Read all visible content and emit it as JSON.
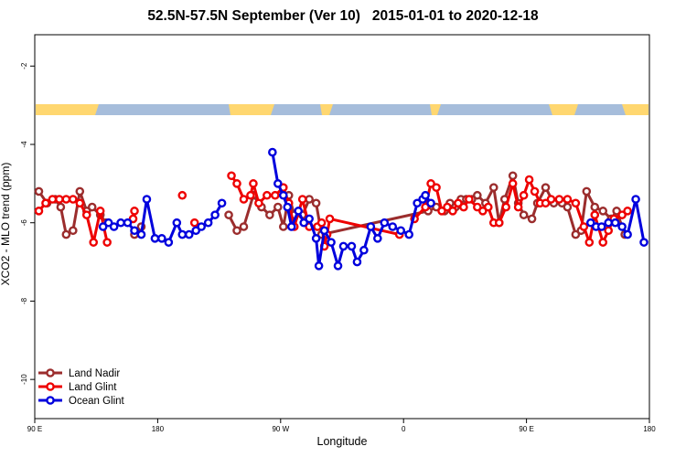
{
  "chart_data": {
    "type": "line",
    "title": "52.5N-57.5N September (Ver 10)   2015-01-01 to 2020-12-18",
    "xlabel": "Longitude",
    "ylabel": "XCO2 - MLO trend (ppm)",
    "x_ticks": [
      {
        "value": 0,
        "label": "90 E"
      },
      {
        "value": 90,
        "label": "180"
      },
      {
        "value": 180,
        "label": "90 W"
      },
      {
        "value": 270,
        "label": "0"
      },
      {
        "value": 360,
        "label": "90 E"
      },
      {
        "value": 450,
        "label": "180"
      }
    ],
    "y_ticks": [
      -2,
      -4,
      -6,
      -8,
      -10
    ],
    "ylim": [
      -11,
      -1.2
    ],
    "xlim": [
      0,
      450
    ],
    "grid": false,
    "legend_position": "bottom-left",
    "series": [
      {
        "name": "Land Nadir",
        "color": "#9b2d2d",
        "points": [
          [
            3,
            -5.2
          ],
          [
            9,
            -5.5
          ],
          [
            15,
            -5.4
          ],
          [
            19,
            -5.6
          ],
          [
            23,
            -6.3
          ],
          [
            28,
            -6.2
          ],
          [
            33,
            -5.2
          ],
          [
            38,
            -5.7
          ],
          [
            42,
            -5.6
          ],
          [
            48,
            -5.8
          ],
          [
            52,
            -6.0
          ],
          [
            73,
            -6.3
          ],
          [
            78,
            -6.1
          ],
          [
            142,
            -5.8
          ],
          [
            148,
            -6.2
          ],
          [
            153,
            -6.1
          ],
          [
            160,
            -5.3
          ],
          [
            166,
            -5.6
          ],
          [
            172,
            -5.8
          ],
          [
            178,
            -5.6
          ],
          [
            182,
            -6.1
          ],
          [
            186,
            -5.3
          ],
          [
            190,
            -5.8
          ],
          [
            196,
            -5.8
          ],
          [
            201,
            -5.4
          ],
          [
            206,
            -5.5
          ],
          [
            210,
            -6.3
          ],
          [
            288,
            -5.7
          ],
          [
            294,
            -5.6
          ],
          [
            300,
            -5.7
          ],
          [
            304,
            -5.5
          ],
          [
            308,
            -5.6
          ],
          [
            312,
            -5.4
          ],
          [
            316,
            -5.4
          ],
          [
            320,
            -5.4
          ],
          [
            324,
            -5.3
          ],
          [
            330,
            -5.5
          ],
          [
            336,
            -5.1
          ],
          [
            340,
            -6.0
          ],
          [
            344,
            -5.4
          ],
          [
            350,
            -4.8
          ],
          [
            354,
            -5.5
          ],
          [
            358,
            -5.8
          ],
          [
            364,
            -5.9
          ],
          [
            368,
            -5.5
          ],
          [
            374,
            -5.1
          ],
          [
            380,
            -5.5
          ],
          [
            386,
            -5.5
          ],
          [
            390,
            -5.6
          ],
          [
            396,
            -6.3
          ],
          [
            400,
            -6.2
          ],
          [
            404,
            -5.2
          ],
          [
            410,
            -5.6
          ],
          [
            416,
            -5.7
          ],
          [
            422,
            -5.9
          ],
          [
            426,
            -5.7
          ],
          [
            432,
            -6.3
          ]
        ],
        "breaks_after": [
          10,
          12
        ]
      },
      {
        "name": "Land Glint",
        "color": "#ee0000",
        "points": [
          [
            3,
            -5.7
          ],
          [
            8,
            -5.5
          ],
          [
            13,
            -5.4
          ],
          [
            18,
            -5.4
          ],
          [
            23,
            -5.4
          ],
          [
            28,
            -5.4
          ],
          [
            33,
            -5.5
          ],
          [
            38,
            -5.8
          ],
          [
            43,
            -6.5
          ],
          [
            48,
            -5.7
          ],
          [
            53,
            -6.5
          ],
          [
            72,
            -5.9
          ],
          [
            73,
            -5.7
          ],
          [
            108,
            -5.3
          ],
          [
            117,
            -6.0
          ],
          [
            144,
            -4.8
          ],
          [
            148,
            -5.0
          ],
          [
            153,
            -5.4
          ],
          [
            158,
            -5.3
          ],
          [
            160,
            -5.0
          ],
          [
            164,
            -5.5
          ],
          [
            170,
            -5.3
          ],
          [
            176,
            -5.3
          ],
          [
            182,
            -5.1
          ],
          [
            186,
            -5.5
          ],
          [
            190,
            -6.1
          ],
          [
            196,
            -5.4
          ],
          [
            201,
            -6.1
          ],
          [
            207,
            -6.1
          ],
          [
            210,
            -6.0
          ],
          [
            212,
            -6.6
          ],
          [
            214,
            -6.3
          ],
          [
            216,
            -5.9
          ],
          [
            267,
            -6.3
          ],
          [
            278,
            -5.9
          ],
          [
            286,
            -5.6
          ],
          [
            290,
            -5.0
          ],
          [
            294,
            -5.1
          ],
          [
            298,
            -5.7
          ],
          [
            302,
            -5.6
          ],
          [
            306,
            -5.7
          ],
          [
            310,
            -5.5
          ],
          [
            314,
            -5.6
          ],
          [
            318,
            -5.4
          ],
          [
            324,
            -5.6
          ],
          [
            328,
            -5.7
          ],
          [
            332,
            -5.6
          ],
          [
            336,
            -6.0
          ],
          [
            340,
            -6.0
          ],
          [
            345,
            -5.6
          ],
          [
            350,
            -5.0
          ],
          [
            354,
            -5.6
          ],
          [
            358,
            -5.3
          ],
          [
            362,
            -4.9
          ],
          [
            366,
            -5.2
          ],
          [
            370,
            -5.5
          ],
          [
            374,
            -5.5
          ],
          [
            378,
            -5.4
          ],
          [
            384,
            -5.4
          ],
          [
            390,
            -5.4
          ],
          [
            396,
            -5.5
          ],
          [
            402,
            -6.1
          ],
          [
            406,
            -6.5
          ],
          [
            410,
            -5.8
          ],
          [
            416,
            -6.5
          ],
          [
            420,
            -6.2
          ],
          [
            424,
            -5.9
          ],
          [
            430,
            -5.8
          ],
          [
            434,
            -5.7
          ]
        ],
        "breaks_after": [
          10,
          12,
          13,
          14,
          33
        ]
      },
      {
        "name": "Ocean Glint",
        "color": "#0000dd",
        "points": [
          [
            50,
            -6.1
          ],
          [
            54,
            -6.0
          ],
          [
            58,
            -6.1
          ],
          [
            63,
            -6.0
          ],
          [
            68,
            -6.0
          ],
          [
            73,
            -6.2
          ],
          [
            78,
            -6.3
          ],
          [
            82,
            -5.4
          ],
          [
            88,
            -6.4
          ],
          [
            93,
            -6.4
          ],
          [
            98,
            -6.5
          ],
          [
            104,
            -6.0
          ],
          [
            108,
            -6.3
          ],
          [
            113,
            -6.3
          ],
          [
            118,
            -6.2
          ],
          [
            122,
            -6.1
          ],
          [
            127,
            -6.0
          ],
          [
            132,
            -5.8
          ],
          [
            137,
            -5.5
          ],
          [
            174,
            -4.2
          ],
          [
            178,
            -5.0
          ],
          [
            182,
            -5.3
          ],
          [
            185,
            -5.6
          ],
          [
            188,
            -6.1
          ],
          [
            193,
            -5.7
          ],
          [
            197,
            -6.0
          ],
          [
            201,
            -5.9
          ],
          [
            206,
            -6.4
          ],
          [
            208,
            -7.1
          ],
          [
            212,
            -6.2
          ],
          [
            217,
            -6.5
          ],
          [
            222,
            -7.1
          ],
          [
            226,
            -6.6
          ],
          [
            232,
            -6.6
          ],
          [
            236,
            -7.0
          ],
          [
            241,
            -6.7
          ],
          [
            246,
            -6.1
          ],
          [
            251,
            -6.4
          ],
          [
            256,
            -6.0
          ],
          [
            262,
            -6.1
          ],
          [
            268,
            -6.2
          ],
          [
            274,
            -6.3
          ],
          [
            280,
            -5.5
          ],
          [
            284,
            -5.4
          ],
          [
            286,
            -5.3
          ],
          [
            290,
            -5.5
          ],
          [
            407,
            -6.0
          ],
          [
            411,
            -6.1
          ],
          [
            415,
            -6.1
          ],
          [
            420,
            -6.0
          ],
          [
            425,
            -6.0
          ],
          [
            430,
            -6.1
          ],
          [
            434,
            -6.3
          ],
          [
            440,
            -5.4
          ],
          [
            446,
            -6.5
          ]
        ],
        "breaks_after": [
          18,
          45
        ]
      }
    ]
  }
}
